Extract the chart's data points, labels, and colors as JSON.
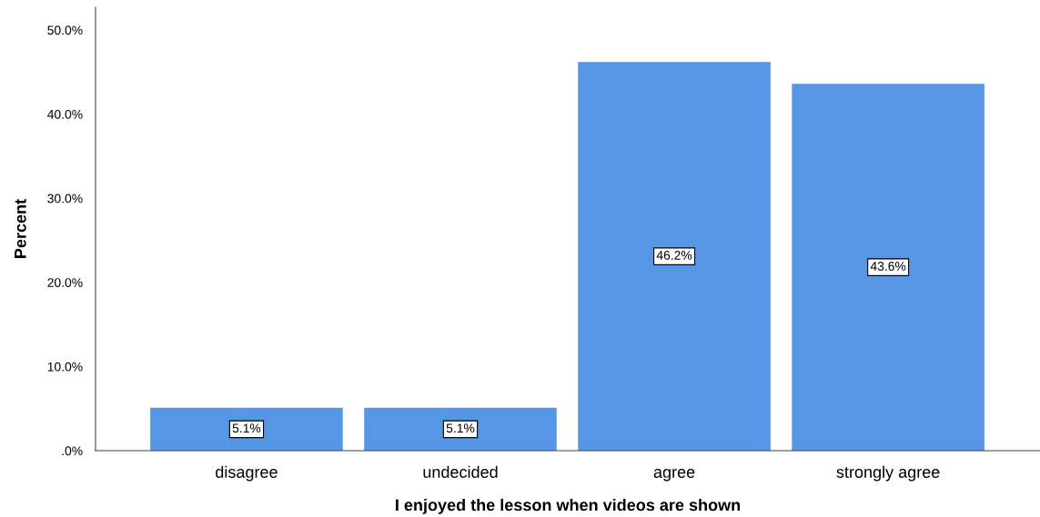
{
  "chart_data": {
    "type": "bar",
    "xlabel": "I enjoyed the lesson when videos are shown",
    "ylabel": "Percent",
    "categories": [
      "disagree",
      "undecided",
      "agree",
      "strongly agree"
    ],
    "values": [
      5.1,
      5.1,
      46.2,
      43.6
    ],
    "value_labels": [
      "5.1%",
      "5.1%",
      "46.2%",
      "43.6%"
    ],
    "color": "#5596e5",
    "ylim": [
      0,
      52.7
    ],
    "yticks": [
      {
        "value": 0,
        "label": ".0%"
      },
      {
        "value": 10,
        "label": "10.0%"
      },
      {
        "value": 20,
        "label": "20.0%"
      },
      {
        "value": 30,
        "label": "30.0%"
      },
      {
        "value": 40,
        "label": "40.0%"
      },
      {
        "value": 50,
        "label": "50.0%"
      }
    ],
    "grid": false,
    "legend": false
  }
}
